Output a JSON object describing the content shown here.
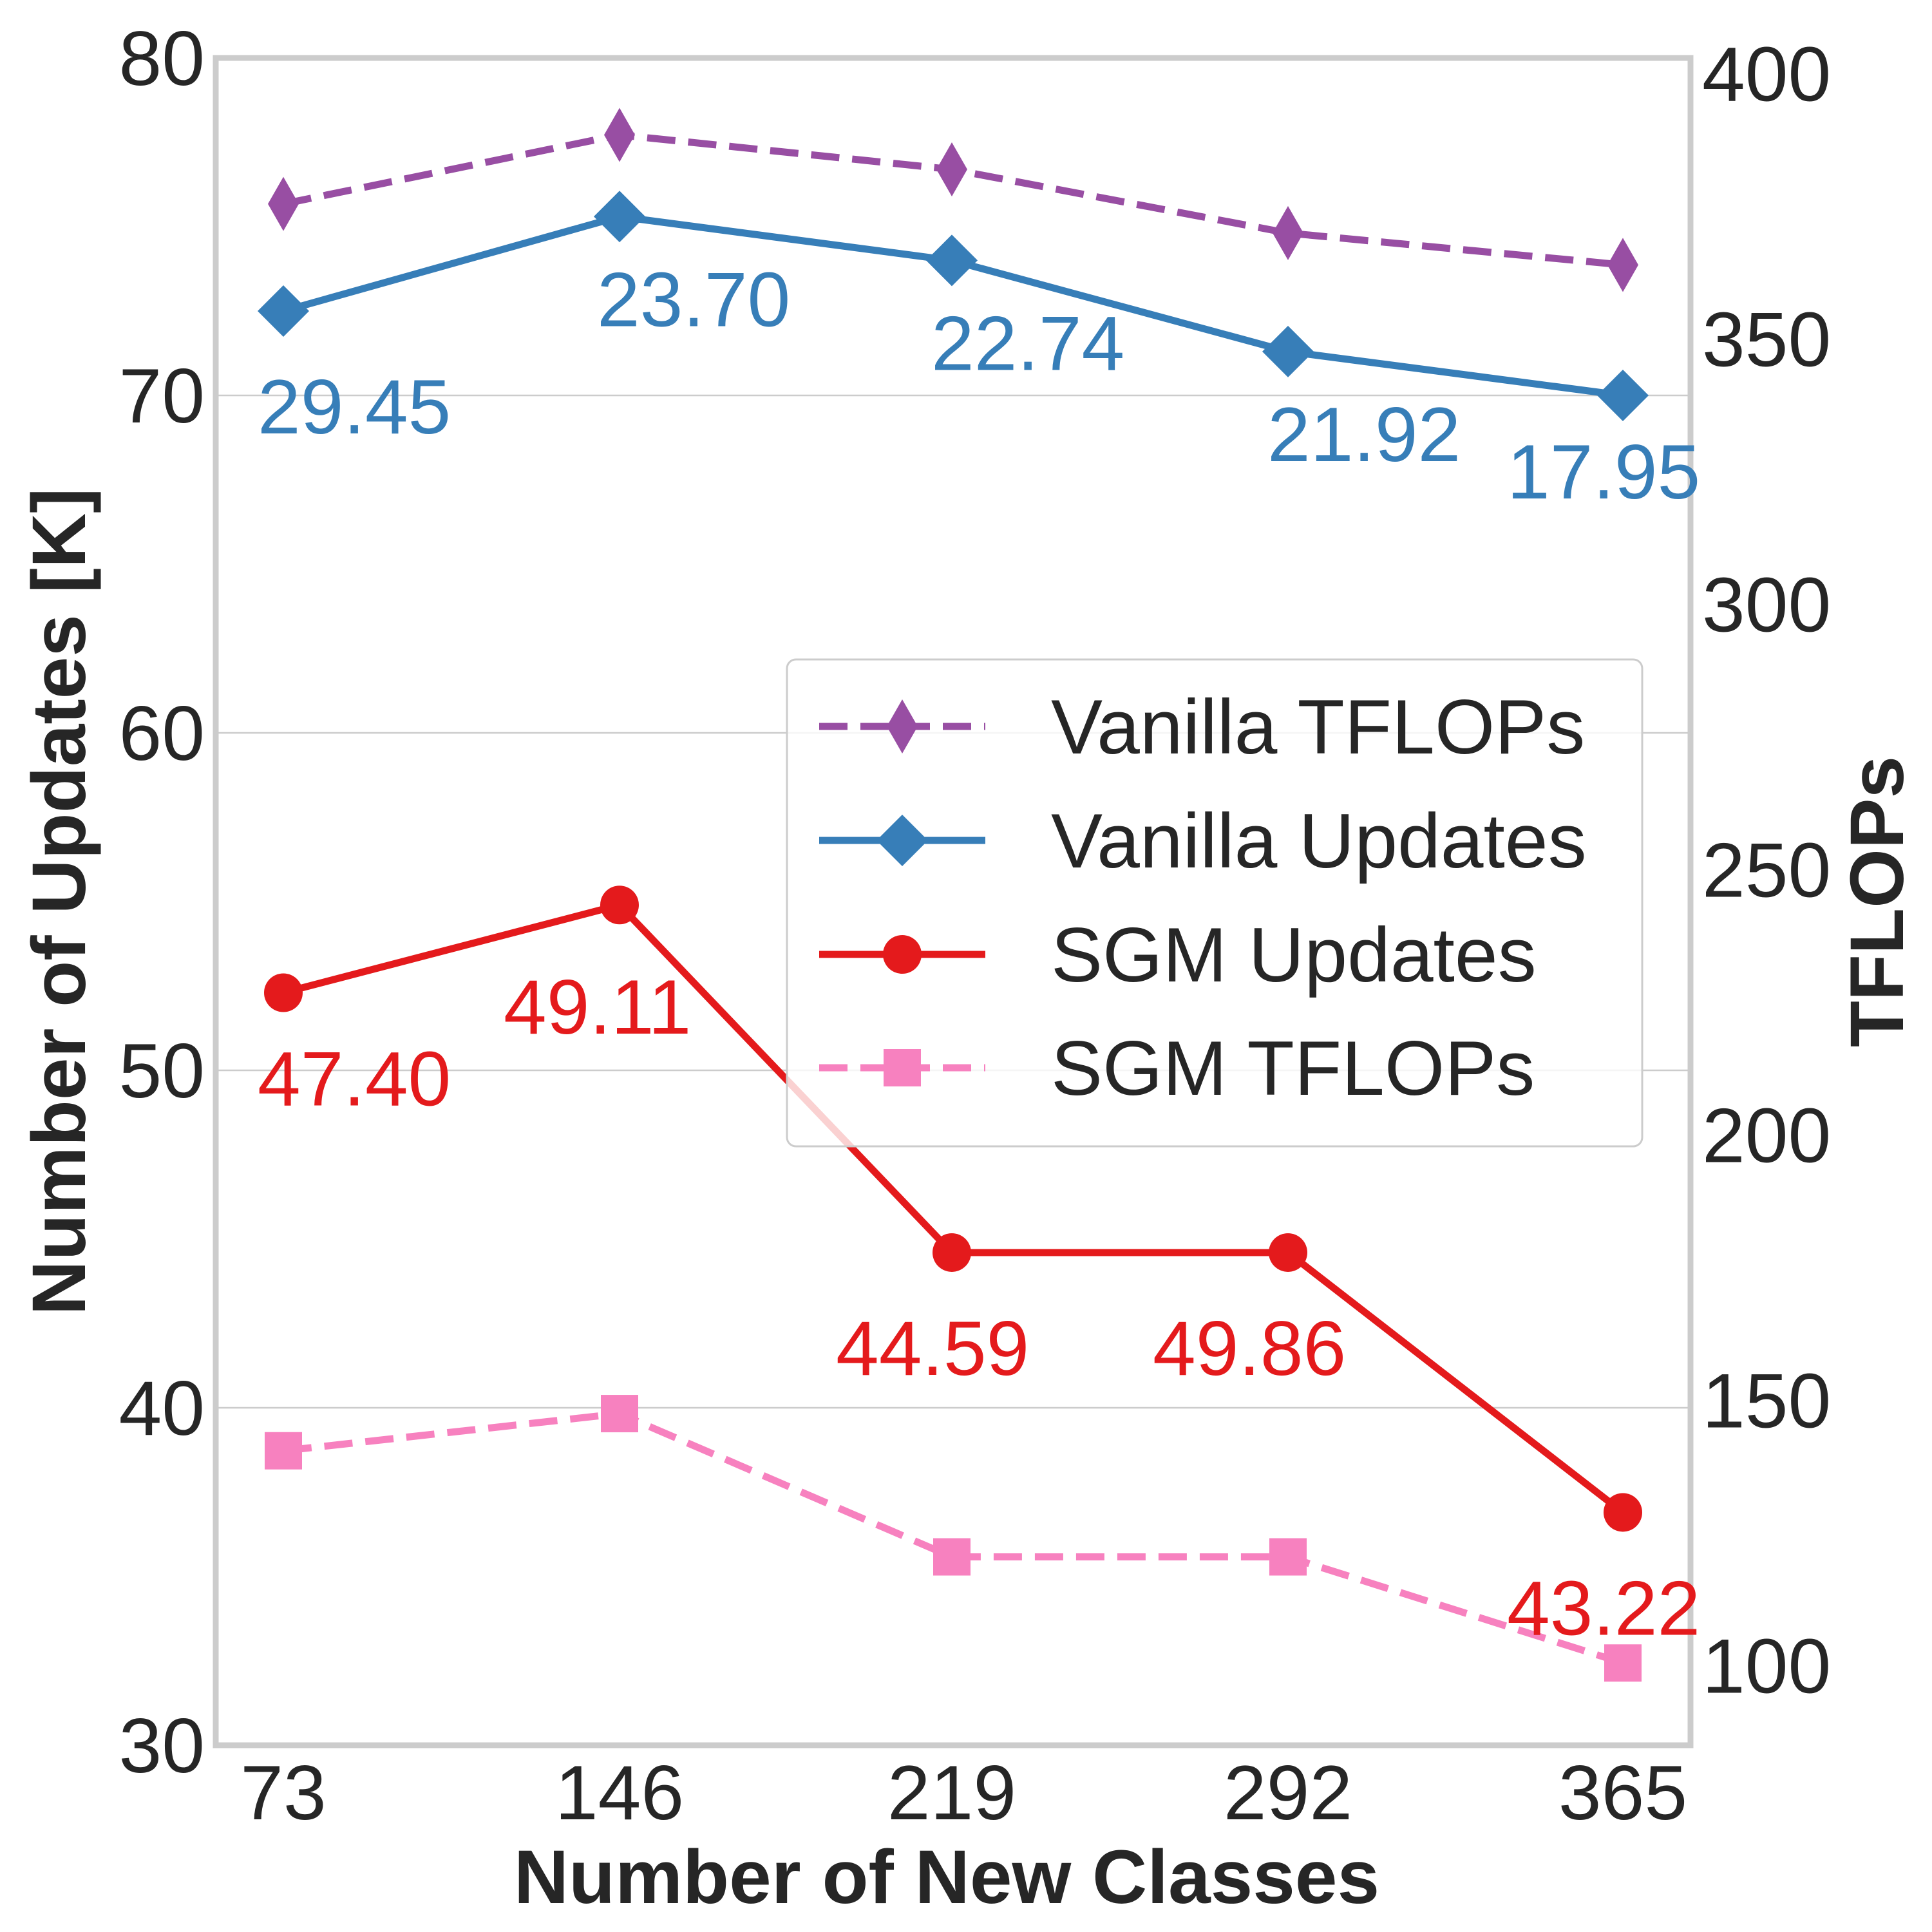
{
  "chart_data": {
    "type": "line",
    "xlabel": "Number of New Classes",
    "ylabel": "Number of Updates [K]",
    "y2label": "TFLOPs",
    "categories": [
      "73",
      "146",
      "219",
      "292",
      "365"
    ],
    "ylim": [
      30,
      80
    ],
    "y2lim": [
      85,
      403
    ],
    "yticks": [
      30,
      40,
      50,
      60,
      70,
      80
    ],
    "y2ticks": [
      100,
      150,
      200,
      250,
      300,
      350,
      400
    ],
    "grid": true,
    "legend_position": "center-right",
    "series": [
      {
        "name": "Vanilla TFLOPs",
        "axis": "right",
        "style": "dashed",
        "marker": "thin-diamond",
        "color": "#984ea3",
        "values": [
          375.5,
          388.5,
          382,
          370,
          364
        ]
      },
      {
        "name": "Vanilla Updates",
        "axis": "left",
        "style": "solid",
        "marker": "diamond",
        "color": "#377eb8",
        "values": [
          72.5,
          75.3,
          74.0,
          71.3,
          70.0
        ],
        "data_labels": [
          "29.45",
          "23.70",
          "22.74",
          "21.92",
          "17.95"
        ]
      },
      {
        "name": "SGM Updates",
        "axis": "left",
        "style": "solid",
        "marker": "circle",
        "color": "#e41a1c",
        "values": [
          52.3,
          54.9,
          44.6,
          44.6,
          36.9
        ],
        "data_labels": [
          "47.40",
          "49.11",
          "44.59",
          "49.86",
          "43.22"
        ]
      },
      {
        "name": "SGM TFLOPs",
        "axis": "right",
        "style": "dashed",
        "marker": "square",
        "color": "#f781bf",
        "values": [
          140.5,
          147.5,
          120.5,
          120.5,
          100.5
        ]
      }
    ]
  }
}
